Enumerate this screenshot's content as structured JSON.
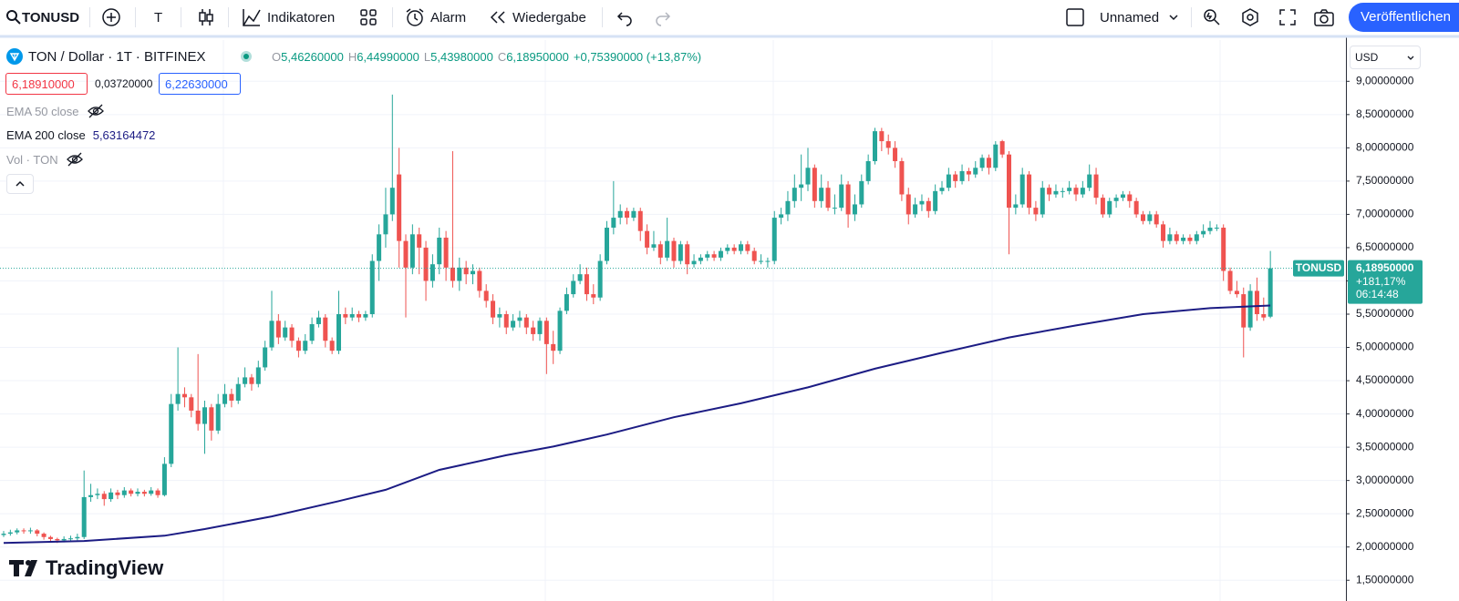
{
  "toolbar": {
    "symbol": "TONUSD",
    "style_button": "T",
    "indicators": "Indikatoren",
    "alert": "Alarm",
    "replay": "Wiedergabe",
    "layout_name": "Unnamed",
    "publish": "Veröffentlichen"
  },
  "legend": {
    "title": "TON / Dollar · 1T · BITFINEX",
    "ohlc": [
      {
        "label": "O",
        "value": "5,46260000"
      },
      {
        "label": "H",
        "value": "6,44990000"
      },
      {
        "label": "L",
        "value": "5,43980000"
      },
      {
        "label": "C",
        "value": "6,18950000"
      }
    ],
    "change": "+0,75390000 (+13,87%)",
    "bid": "6,18910000",
    "spread": "0,03720000",
    "ask": "6,22630000",
    "hidden_indicators": [
      "EMA 50 close",
      "Vol · TON"
    ],
    "ema_value": "5,63164472"
  },
  "price_axis": {
    "currency": "USD",
    "last_symbol": "TONUSD",
    "last_price": "6,18950000",
    "last_change": "+181,17%",
    "countdown": "06:14:48"
  },
  "watermark": "TradingView",
  "chart_data": {
    "type": "candlestick",
    "up_color": "#26a69a",
    "down_color": "#ef5350",
    "grid": true,
    "ylim": [
      1.38,
      9.62
    ],
    "yticks": [
      {
        "value": 1.5,
        "label": "1,50000000"
      },
      {
        "value": 2,
        "label": "2,00000000"
      },
      {
        "value": 2.5,
        "label": "2,50000000"
      },
      {
        "value": 3,
        "label": "3,00000000"
      },
      {
        "value": 3.5,
        "label": "3,50000000"
      },
      {
        "value": 4,
        "label": "4,00000000"
      },
      {
        "value": 4.5,
        "label": "4,50000000"
      },
      {
        "value": 5,
        "label": "5,00000000"
      },
      {
        "value": 5.5,
        "label": "5,50000000"
      },
      {
        "value": 6,
        "label": "6,00000000"
      },
      {
        "value": 6.5,
        "label": "6,50000000"
      },
      {
        "value": 7,
        "label": "7,00000000"
      },
      {
        "value": 7.5,
        "label": "7,50000000"
      },
      {
        "value": 8,
        "label": "8,00000000"
      },
      {
        "value": 8.5,
        "label": "8,50000000"
      },
      {
        "value": 9,
        "label": "9,00000000"
      }
    ],
    "ema": {
      "name": "EMA 200 close",
      "color": "#1c1c84",
      "x": [
        0,
        12,
        24,
        30,
        40,
        50,
        57,
        65,
        75,
        82,
        90,
        100,
        110,
        120,
        130,
        140,
        150,
        160,
        170,
        180,
        189
      ],
      "values": [
        2.06,
        2.09,
        2.17,
        2.27,
        2.46,
        2.69,
        2.86,
        3.16,
        3.38,
        3.51,
        3.69,
        3.95,
        4.16,
        4.4,
        4.68,
        4.92,
        5.15,
        5.33,
        5.5,
        5.59,
        5.63
      ]
    },
    "ohlc": [
      [
        2.18,
        2.24,
        2.15,
        2.2
      ],
      [
        2.2,
        2.26,
        2.17,
        2.22
      ],
      [
        2.22,
        2.28,
        2.19,
        2.25
      ],
      [
        2.25,
        2.28,
        2.2,
        2.24
      ],
      [
        2.24,
        2.29,
        2.2,
        2.25
      ],
      [
        2.25,
        2.27,
        2.16,
        2.2
      ],
      [
        2.2,
        2.22,
        2.11,
        2.15
      ],
      [
        2.15,
        2.17,
        2.08,
        2.12
      ],
      [
        2.12,
        2.14,
        2.06,
        2.1
      ],
      [
        2.1,
        2.16,
        2.07,
        2.12
      ],
      [
        2.12,
        2.17,
        2.09,
        2.13
      ],
      [
        2.13,
        2.2,
        2.1,
        2.15
      ],
      [
        2.15,
        3.15,
        2.12,
        2.75
      ],
      [
        2.75,
        2.95,
        2.68,
        2.78
      ],
      [
        2.78,
        2.88,
        2.72,
        2.8
      ],
      [
        2.8,
        2.84,
        2.62,
        2.72
      ],
      [
        2.72,
        2.88,
        2.68,
        2.82
      ],
      [
        2.82,
        2.86,
        2.72,
        2.78
      ],
      [
        2.78,
        2.9,
        2.74,
        2.85
      ],
      [
        2.85,
        2.88,
        2.76,
        2.8
      ],
      [
        2.8,
        2.88,
        2.76,
        2.83
      ],
      [
        2.83,
        2.86,
        2.76,
        2.8
      ],
      [
        2.8,
        2.9,
        2.77,
        2.85
      ],
      [
        2.85,
        2.88,
        2.74,
        2.78
      ],
      [
        2.78,
        3.35,
        2.76,
        3.25
      ],
      [
        3.25,
        4.3,
        3.2,
        4.15
      ],
      [
        4.15,
        5.0,
        4.05,
        4.3
      ],
      [
        4.3,
        4.4,
        4.1,
        4.25
      ],
      [
        4.25,
        4.3,
        3.95,
        4.05
      ],
      [
        4.05,
        4.9,
        3.75,
        3.85
      ],
      [
        3.85,
        4.2,
        3.4,
        4.1
      ],
      [
        4.1,
        4.15,
        3.6,
        3.75
      ],
      [
        3.75,
        4.3,
        3.7,
        4.15
      ],
      [
        4.15,
        4.45,
        4.1,
        4.3
      ],
      [
        4.3,
        4.38,
        4.1,
        4.2
      ],
      [
        4.2,
        4.55,
        4.15,
        4.45
      ],
      [
        4.45,
        4.7,
        4.4,
        4.55
      ],
      [
        4.55,
        4.6,
        4.35,
        4.45
      ],
      [
        4.45,
        4.8,
        4.4,
        4.7
      ],
      [
        4.7,
        5.1,
        4.65,
        5.0
      ],
      [
        5.0,
        5.85,
        4.95,
        5.4
      ],
      [
        5.4,
        5.5,
        5.05,
        5.15
      ],
      [
        5.15,
        5.4,
        5.1,
        5.3
      ],
      [
        5.3,
        5.35,
        5.0,
        5.1
      ],
      [
        5.1,
        5.15,
        4.85,
        4.95
      ],
      [
        4.95,
        5.2,
        4.9,
        5.1
      ],
      [
        5.1,
        5.45,
        5.05,
        5.35
      ],
      [
        5.35,
        5.55,
        5.3,
        5.45
      ],
      [
        5.45,
        5.5,
        5.0,
        5.1
      ],
      [
        5.1,
        5.15,
        4.9,
        4.95
      ],
      [
        4.95,
        5.85,
        4.9,
        5.5
      ],
      [
        5.5,
        5.6,
        5.35,
        5.45
      ],
      [
        5.45,
        5.6,
        5.4,
        5.5
      ],
      [
        5.5,
        5.55,
        5.38,
        5.45
      ],
      [
        5.45,
        5.55,
        5.4,
        5.5
      ],
      [
        5.5,
        6.4,
        5.45,
        6.3
      ],
      [
        6.3,
        6.85,
        6.0,
        6.7
      ],
      [
        6.7,
        7.4,
        6.5,
        7.0
      ],
      [
        7.0,
        8.8,
        6.9,
        7.4
      ],
      [
        7.6,
        8.0,
        6.2,
        6.6
      ],
      [
        6.6,
        6.7,
        5.45,
        6.2
      ],
      [
        6.2,
        6.85,
        6.1,
        6.7
      ],
      [
        6.7,
        6.8,
        6.1,
        6.5
      ],
      [
        6.5,
        6.6,
        5.7,
        6.0
      ],
      [
        6.0,
        6.4,
        5.9,
        6.25
      ],
      [
        6.25,
        6.8,
        6.1,
        6.65
      ],
      [
        6.65,
        6.75,
        6.0,
        6.2
      ],
      [
        6.2,
        7.95,
        5.9,
        6.0
      ],
      [
        6.0,
        6.35,
        5.85,
        6.2
      ],
      [
        6.2,
        6.3,
        5.95,
        6.1
      ],
      [
        6.1,
        6.25,
        5.95,
        6.15
      ],
      [
        6.15,
        6.2,
        5.75,
        5.85
      ],
      [
        5.85,
        5.95,
        5.6,
        5.7
      ],
      [
        5.7,
        5.8,
        5.35,
        5.45
      ],
      [
        5.45,
        5.6,
        5.3,
        5.5
      ],
      [
        5.5,
        5.55,
        5.2,
        5.3
      ],
      [
        5.3,
        5.5,
        5.25,
        5.4
      ],
      [
        5.4,
        5.55,
        5.3,
        5.45
      ],
      [
        5.45,
        5.5,
        5.2,
        5.3
      ],
      [
        5.3,
        5.4,
        5.1,
        5.2
      ],
      [
        5.2,
        5.45,
        5.1,
        5.4
      ],
      [
        5.4,
        5.45,
        4.6,
        5.05
      ],
      [
        5.05,
        5.25,
        4.75,
        4.95
      ],
      [
        4.95,
        5.6,
        4.9,
        5.55
      ],
      [
        5.55,
        5.9,
        5.5,
        5.8
      ],
      [
        5.8,
        6.1,
        5.75,
        6.0
      ],
      [
        6.0,
        6.25,
        5.95,
        6.1
      ],
      [
        6.1,
        6.2,
        5.7,
        5.8
      ],
      [
        5.8,
        5.95,
        5.65,
        5.75
      ],
      [
        5.75,
        6.4,
        5.7,
        6.3
      ],
      [
        6.3,
        6.9,
        6.25,
        6.8
      ],
      [
        6.8,
        7.5,
        6.7,
        6.95
      ],
      [
        6.95,
        7.15,
        6.85,
        7.05
      ],
      [
        7.05,
        7.1,
        6.85,
        6.95
      ],
      [
        6.95,
        7.1,
        6.9,
        7.05
      ],
      [
        7.05,
        7.1,
        6.6,
        6.75
      ],
      [
        6.75,
        6.85,
        6.4,
        6.5
      ],
      [
        6.5,
        6.75,
        6.45,
        6.55
      ],
      [
        6.55,
        6.6,
        6.25,
        6.35
      ],
      [
        6.35,
        6.95,
        6.3,
        6.6
      ],
      [
        6.6,
        6.65,
        6.2,
        6.3
      ],
      [
        6.3,
        6.6,
        6.25,
        6.55
      ],
      [
        6.55,
        6.6,
        6.1,
        6.25
      ],
      [
        6.25,
        6.4,
        6.2,
        6.3
      ],
      [
        6.3,
        6.4,
        6.25,
        6.35
      ],
      [
        6.35,
        6.45,
        6.3,
        6.4
      ],
      [
        6.4,
        6.45,
        6.3,
        6.35
      ],
      [
        6.35,
        6.5,
        6.3,
        6.45
      ],
      [
        6.45,
        6.55,
        6.4,
        6.5
      ],
      [
        6.5,
        6.55,
        6.4,
        6.45
      ],
      [
        6.45,
        6.6,
        6.4,
        6.55
      ],
      [
        6.55,
        6.6,
        6.4,
        6.45
      ],
      [
        6.45,
        6.5,
        6.25,
        6.3
      ],
      [
        6.3,
        6.4,
        6.25,
        6.3
      ],
      [
        6.3,
        6.35,
        6.2,
        6.3
      ],
      [
        6.3,
        7.05,
        6.25,
        6.95
      ],
      [
        6.95,
        7.1,
        6.85,
        7.0
      ],
      [
        7.0,
        7.35,
        6.9,
        7.2
      ],
      [
        7.2,
        7.6,
        7.1,
        7.4
      ],
      [
        7.4,
        7.9,
        7.2,
        7.45
      ],
      [
        7.45,
        8.0,
        7.35,
        7.7
      ],
      [
        7.7,
        7.75,
        7.1,
        7.2
      ],
      [
        7.2,
        7.6,
        7.1,
        7.4
      ],
      [
        7.4,
        7.5,
        7.05,
        7.1
      ],
      [
        7.1,
        7.3,
        7.0,
        7.1
      ],
      [
        7.1,
        7.6,
        7.05,
        7.45
      ],
      [
        7.45,
        7.5,
        6.8,
        7.0
      ],
      [
        7.0,
        7.3,
        6.9,
        7.15
      ],
      [
        7.15,
        7.6,
        7.1,
        7.5
      ],
      [
        7.5,
        7.9,
        7.45,
        7.8
      ],
      [
        7.8,
        8.3,
        7.75,
        8.25
      ],
      [
        8.25,
        8.3,
        7.95,
        8.1
      ],
      [
        8.1,
        8.2,
        7.9,
        8.0
      ],
      [
        8.0,
        8.1,
        7.7,
        7.8
      ],
      [
        7.8,
        7.85,
        7.2,
        7.3
      ],
      [
        7.3,
        7.4,
        6.85,
        7.0
      ],
      [
        7.0,
        7.25,
        6.95,
        7.15
      ],
      [
        7.15,
        7.3,
        7.05,
        7.2
      ],
      [
        7.2,
        7.25,
        6.95,
        7.05
      ],
      [
        7.05,
        7.45,
        7.0,
        7.35
      ],
      [
        7.35,
        7.5,
        7.3,
        7.4
      ],
      [
        7.4,
        7.7,
        7.35,
        7.6
      ],
      [
        7.6,
        7.65,
        7.4,
        7.5
      ],
      [
        7.5,
        7.75,
        7.45,
        7.65
      ],
      [
        7.65,
        7.7,
        7.5,
        7.6
      ],
      [
        7.6,
        7.8,
        7.55,
        7.7
      ],
      [
        7.7,
        7.9,
        7.65,
        7.85
      ],
      [
        7.85,
        7.9,
        7.6,
        7.7
      ],
      [
        7.7,
        8.1,
        7.65,
        8.05
      ],
      [
        8.1,
        8.12,
        7.85,
        7.9
      ],
      [
        7.9,
        7.95,
        6.4,
        7.1
      ],
      [
        7.1,
        7.3,
        7.0,
        7.15
      ],
      [
        7.15,
        7.7,
        7.1,
        7.6
      ],
      [
        7.6,
        7.65,
        7.0,
        7.1
      ],
      [
        7.1,
        7.2,
        6.9,
        7.0
      ],
      [
        7.0,
        7.5,
        6.95,
        7.4
      ],
      [
        7.4,
        7.45,
        7.2,
        7.3
      ],
      [
        7.3,
        7.45,
        7.25,
        7.35
      ],
      [
        7.35,
        7.4,
        7.25,
        7.35
      ],
      [
        7.35,
        7.5,
        7.3,
        7.4
      ],
      [
        7.4,
        7.45,
        7.2,
        7.3
      ],
      [
        7.3,
        7.5,
        7.25,
        7.4
      ],
      [
        7.4,
        7.75,
        7.35,
        7.6
      ],
      [
        7.6,
        7.7,
        7.15,
        7.25
      ],
      [
        7.25,
        7.3,
        6.95,
        7.0
      ],
      [
        7.0,
        7.25,
        6.95,
        7.2
      ],
      [
        7.2,
        7.3,
        7.1,
        7.25
      ],
      [
        7.25,
        7.35,
        7.2,
        7.3
      ],
      [
        7.3,
        7.35,
        7.1,
        7.2
      ],
      [
        7.2,
        7.25,
        6.95,
        7.0
      ],
      [
        7.0,
        7.05,
        6.85,
        6.9
      ],
      [
        6.9,
        7.05,
        6.85,
        7.0
      ],
      [
        7.0,
        7.05,
        6.8,
        6.85
      ],
      [
        6.85,
        6.9,
        6.5,
        6.6
      ],
      [
        6.6,
        6.8,
        6.55,
        6.7
      ],
      [
        6.7,
        6.75,
        6.55,
        6.6
      ],
      [
        6.6,
        6.7,
        6.55,
        6.65
      ],
      [
        6.65,
        6.7,
        6.55,
        6.6
      ],
      [
        6.6,
        6.75,
        6.55,
        6.7
      ],
      [
        6.7,
        6.85,
        6.65,
        6.75
      ],
      [
        6.75,
        6.9,
        6.7,
        6.8
      ],
      [
        6.8,
        6.85,
        6.75,
        6.8
      ],
      [
        6.8,
        6.85,
        6.0,
        6.15
      ],
      [
        6.15,
        6.2,
        5.8,
        5.85
      ],
      [
        5.85,
        6.0,
        5.75,
        5.8
      ],
      [
        5.8,
        5.9,
        4.85,
        5.3
      ],
      [
        5.3,
        5.95,
        5.25,
        5.85
      ],
      [
        5.85,
        6.05,
        5.4,
        5.5
      ],
      [
        5.5,
        5.75,
        5.4,
        5.45
      ],
      [
        5.4626,
        6.4499,
        5.4398,
        6.1895
      ]
    ]
  }
}
